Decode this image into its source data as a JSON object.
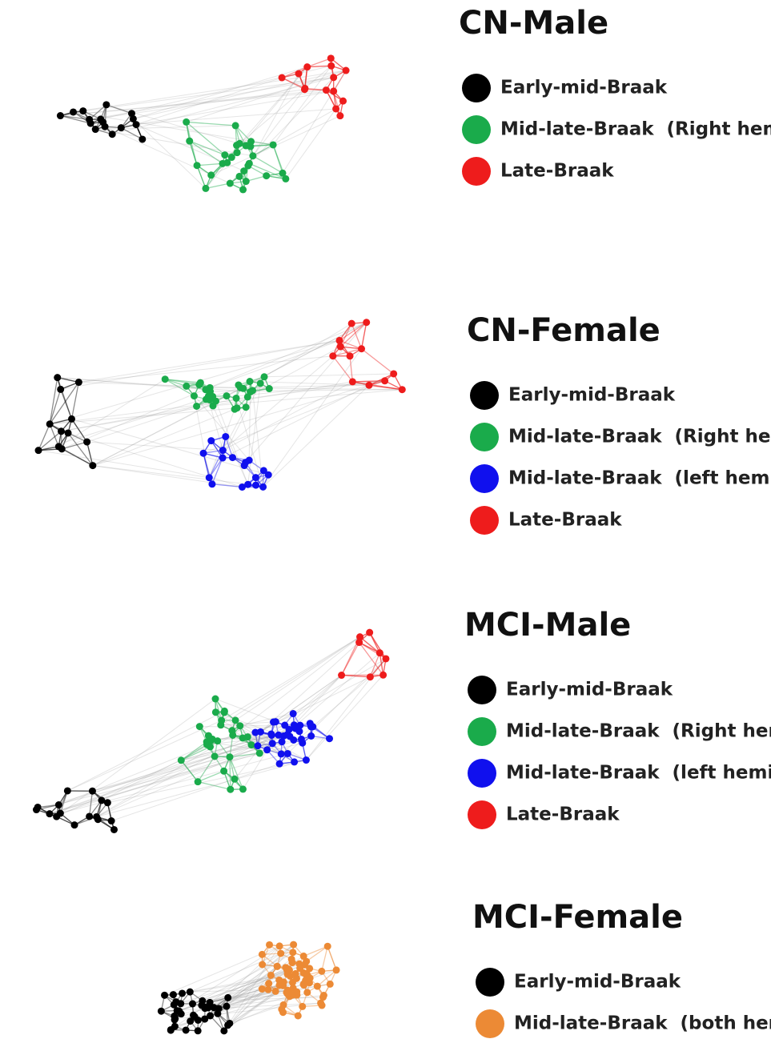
{
  "panels": [
    {
      "title": "CN-Male",
      "legend": [
        {
          "label": "Early-mid-Braak",
          "color": "#000000"
        },
        {
          "label": "Mid-late-Braak  (Right hemi.)",
          "color": "#1aab4b"
        },
        {
          "label": "Late-Braak",
          "color": "#ee1c1c"
        }
      ]
    },
    {
      "title": "CN-Female",
      "legend": [
        {
          "label": "Early-mid-Braak",
          "color": "#000000"
        },
        {
          "label": "Mid-late-Braak  (Right hemi.)",
          "color": "#1aab4b"
        },
        {
          "label": "Mid-late-Braak  (left hemi.)",
          "color": "#1010ee"
        },
        {
          "label": "Late-Braak",
          "color": "#ee1c1c"
        }
      ]
    },
    {
      "title": "MCI-Male",
      "legend": [
        {
          "label": "Early-mid-Braak",
          "color": "#000000"
        },
        {
          "label": "Mid-late-Braak  (Right hemi.)",
          "color": "#1aab4b"
        },
        {
          "label": "Mid-late-Braak  (left hemi.)",
          "color": "#1010ee"
        },
        {
          "label": "Late-Braak",
          "color": "#ee1c1c"
        }
      ]
    },
    {
      "title": "MCI-Female",
      "legend": [
        {
          "label": "Early-mid-Braak",
          "color": "#000000"
        },
        {
          "label": "Mid-late-Braak  (both hemi.)",
          "color": "#ec8a35"
        }
      ]
    }
  ]
}
